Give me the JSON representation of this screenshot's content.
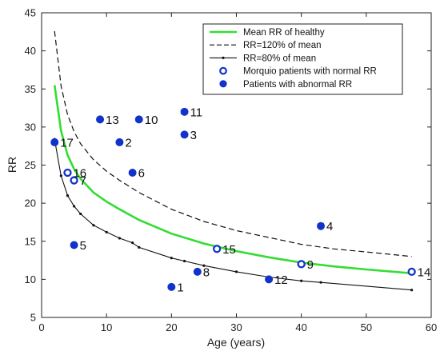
{
  "chart_data": {
    "type": "scatter",
    "xlabel": "Age (years)",
    "ylabel": "RR",
    "xlim": [
      0,
      60
    ],
    "ylim": [
      5,
      45
    ],
    "xticks": [
      0,
      10,
      20,
      30,
      40,
      50,
      60
    ],
    "yticks": [
      5,
      10,
      15,
      20,
      25,
      30,
      35,
      40,
      45
    ],
    "grid": false,
    "legend_position": "top-right",
    "colors": {
      "mean": "#33dd33",
      "upper": "#111111",
      "lower": "#111111",
      "markers": "#1133cc"
    },
    "legend": [
      "Mean RR of healthy",
      "RR=120% of mean",
      "RR=80% of mean",
      "Morquio patients with normal RR",
      "Patients with abnormal RR"
    ],
    "lines": [
      {
        "name": "Mean RR of healthy",
        "style": "solid-green",
        "x": [
          2,
          3,
          4,
          5,
          6,
          8,
          10,
          12,
          15,
          20,
          25,
          30,
          35,
          40,
          45,
          50,
          57
        ],
        "y": [
          35.5,
          29.5,
          26.3,
          24.5,
          23.2,
          21.4,
          20.2,
          19.2,
          17.8,
          16.0,
          14.7,
          13.7,
          12.9,
          12.2,
          11.7,
          11.3,
          10.8
        ]
      },
      {
        "name": "RR=120% of mean",
        "style": "dashed-black",
        "x": [
          2,
          3,
          4,
          5,
          6,
          8,
          10,
          12,
          15,
          20,
          25,
          30,
          35,
          40,
          45,
          50,
          57
        ],
        "y": [
          42.6,
          35.4,
          31.6,
          29.4,
          27.8,
          25.7,
          24.2,
          23.0,
          21.4,
          19.2,
          17.6,
          16.4,
          15.5,
          14.6,
          14.0,
          13.6,
          13.0
        ]
      },
      {
        "name": "RR=80% of mean",
        "style": "solid-black-dotted",
        "x": [
          2,
          3,
          4,
          5,
          6,
          8,
          10,
          12,
          14,
          15,
          20,
          22,
          25,
          30,
          35,
          40,
          43,
          57
        ],
        "y": [
          28.4,
          23.6,
          21.0,
          19.6,
          18.6,
          17.1,
          16.2,
          15.4,
          14.8,
          14.2,
          12.8,
          12.4,
          11.8,
          11.0,
          10.3,
          9.8,
          9.6,
          8.6
        ]
      }
    ],
    "points": [
      {
        "label": "1",
        "x": 20,
        "y": 9,
        "filled": true
      },
      {
        "label": "2",
        "x": 12,
        "y": 28,
        "filled": true
      },
      {
        "label": "3",
        "x": 22,
        "y": 29,
        "filled": true
      },
      {
        "label": "4",
        "x": 43,
        "y": 17,
        "filled": true
      },
      {
        "label": "5",
        "x": 5,
        "y": 14.5,
        "filled": true
      },
      {
        "label": "6",
        "x": 14,
        "y": 24,
        "filled": true
      },
      {
        "label": "7",
        "x": 5,
        "y": 23,
        "filled": false
      },
      {
        "label": "8",
        "x": 24,
        "y": 11,
        "filled": true
      },
      {
        "label": "9",
        "x": 40,
        "y": 12,
        "filled": false
      },
      {
        "label": "10",
        "x": 15,
        "y": 31,
        "filled": true
      },
      {
        "label": "11",
        "x": 22,
        "y": 32,
        "filled": true
      },
      {
        "label": "12",
        "x": 35,
        "y": 10,
        "filled": true
      },
      {
        "label": "13",
        "x": 9,
        "y": 31,
        "filled": true
      },
      {
        "label": "14",
        "x": 57,
        "y": 11,
        "filled": false
      },
      {
        "label": "15",
        "x": 27,
        "y": 14,
        "filled": false
      },
      {
        "label": "16",
        "x": 4,
        "y": 24,
        "filled": false
      },
      {
        "label": "17",
        "x": 2,
        "y": 28,
        "filled": true
      }
    ]
  }
}
